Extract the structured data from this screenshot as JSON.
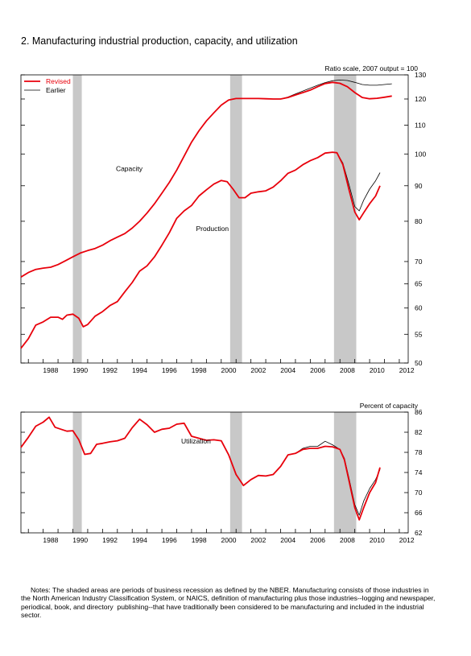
{
  "figure": {
    "title": "2. Manufacturing industrial production, capacity, and utilization",
    "notes": "     Notes: The shaded areas are periods of business recession as defined by the NBER. Manufacturing consists of those industries in the North American Industry Classification System, or NAICS, definition of manufacturing plus those industries--logging and newspaper, periodical, book, and directory  publishing--that have traditionally been considered to be manufacturing and included in the industrial sector."
  },
  "colors": {
    "revised": "#e8000b",
    "earlier": "#000000",
    "recession": "#c8c8c8"
  },
  "chart_data": [
    {
      "type": "line",
      "title": "",
      "axis_note": "Ratio scale, 2007 output = 100",
      "scale": "log",
      "xlim": [
        1986.5,
        2012.6
      ],
      "ylim": [
        50,
        130
      ],
      "x_tick_labels": [
        "1988",
        "1990",
        "1992",
        "1994",
        "1996",
        "1998",
        "2000",
        "2002",
        "2004",
        "2006",
        "2008",
        "2010",
        "2012"
      ],
      "y_tick_labels": [
        "50",
        "55",
        "60",
        "65",
        "70",
        "80",
        "90",
        "100",
        "110",
        "120",
        "130"
      ],
      "legend": {
        "position": "top-left",
        "entries": [
          "Revised",
          "Earlier"
        ]
      },
      "recessions": [
        [
          1990.0,
          1990.6
        ],
        [
          2000.6,
          2001.4
        ],
        [
          2007.6,
          2009.1
        ]
      ],
      "annotations": [
        {
          "text": "Capacity",
          "x": 1992.9,
          "y": 94.5
        },
        {
          "text": "Production",
          "x": 1998.3,
          "y": 77.5
        }
      ],
      "series": [
        {
          "name": "Revised",
          "label": "Capacity",
          "x": [
            1986.5,
            1987,
            1987.5,
            1988,
            1988.5,
            1989,
            1989.5,
            1990,
            1990.5,
            1991,
            1991.5,
            1992,
            1992.5,
            1993,
            1993.5,
            1994,
            1994.5,
            1995,
            1995.5,
            1996,
            1996.5,
            1997,
            1997.5,
            1998,
            1998.5,
            1999,
            1999.5,
            2000,
            2000.5,
            2001,
            2001.5,
            2002,
            2002.5,
            2003,
            2003.5,
            2004,
            2004.5,
            2005,
            2005.5,
            2006,
            2006.5,
            2007,
            2007.5,
            2008,
            2008.5,
            2009,
            2009.5,
            2010,
            2010.5,
            2011,
            2011.5
          ],
          "y": [
            66.5,
            67.5,
            68.2,
            68.5,
            68.7,
            69.3,
            70.2,
            71.1,
            72.0,
            72.6,
            73.1,
            73.9,
            75.0,
            75.9,
            76.8,
            78.2,
            80.0,
            82.2,
            84.8,
            87.8,
            91.0,
            94.8,
            99.3,
            104.0,
            108.0,
            111.6,
            114.6,
            117.6,
            119.6,
            120.2,
            120.2,
            120.2,
            120.2,
            120.1,
            120.0,
            120.0,
            120.6,
            121.6,
            122.6,
            123.6,
            125.0,
            126.3,
            126.8,
            126.4,
            125.0,
            122.6,
            120.6,
            120.1,
            120.3,
            120.7,
            121.2
          ]
        },
        {
          "name": "Earlier",
          "label": "Capacity",
          "x": [
            1986.5,
            1987,
            1987.5,
            1988,
            1988.5,
            1989,
            1989.5,
            1990,
            1990.5,
            1991,
            1991.5,
            1992,
            1992.5,
            1993,
            1993.5,
            1994,
            1994.5,
            1995,
            1995.5,
            1996,
            1996.5,
            1997,
            1997.5,
            1998,
            1998.5,
            1999,
            1999.5,
            2000,
            2000.5,
            2001,
            2001.5,
            2002,
            2002.5,
            2003,
            2003.5,
            2004,
            2004.5,
            2005,
            2005.5,
            2006,
            2006.5,
            2007,
            2007.5,
            2008,
            2008.5,
            2009,
            2009.5,
            2010,
            2010.5,
            2011,
            2011.5
          ],
          "y": [
            66.5,
            67.5,
            68.2,
            68.5,
            68.7,
            69.3,
            70.2,
            71.1,
            72.0,
            72.6,
            73.1,
            73.9,
            75.0,
            75.9,
            76.8,
            78.2,
            80.0,
            82.2,
            84.8,
            87.8,
            91.0,
            94.8,
            99.3,
            104.0,
            108.0,
            111.6,
            114.6,
            117.6,
            119.6,
            120.2,
            120.2,
            120.2,
            120.2,
            120.1,
            120.0,
            120.0,
            120.8,
            122.0,
            123.2,
            124.4,
            125.6,
            126.7,
            127.5,
            127.8,
            127.6,
            126.8,
            125.9,
            125.6,
            125.6,
            125.9,
            126.2
          ]
        },
        {
          "name": "Revised",
          "label": "Production",
          "x": [
            1986.5,
            1987,
            1987.5,
            1988,
            1988.5,
            1989,
            1989.3,
            1989.6,
            1990,
            1990.4,
            1990.7,
            1991,
            1991.5,
            1992,
            1992.5,
            1993,
            1993.5,
            1994,
            1994.5,
            1995,
            1995.5,
            1996,
            1996.5,
            1997,
            1997.5,
            1998,
            1998.5,
            1999,
            1999.5,
            2000,
            2000.4,
            2000.8,
            2001.2,
            2001.6,
            2002,
            2002.5,
            2003,
            2003.5,
            2004,
            2004.5,
            2005,
            2005.5,
            2006,
            2006.5,
            2007,
            2007.5,
            2007.8,
            2008.2,
            2008.6,
            2009,
            2009.3,
            2009.6,
            2010,
            2010.4,
            2010.7
          ],
          "y": [
            52.5,
            54.2,
            56.7,
            57.3,
            58.2,
            58.2,
            57.8,
            58.6,
            58.8,
            58.0,
            56.4,
            56.8,
            58.4,
            59.3,
            60.5,
            61.3,
            63.3,
            65.3,
            67.8,
            69.0,
            71.1,
            73.9,
            77.0,
            80.8,
            82.8,
            84.3,
            87.0,
            88.8,
            90.5,
            91.6,
            91.2,
            89.0,
            86.5,
            86.5,
            87.8,
            88.2,
            88.5,
            89.6,
            91.5,
            93.8,
            94.8,
            96.5,
            97.8,
            98.8,
            100.3,
            100.6,
            100.4,
            96.5,
            89.0,
            82.5,
            80.4,
            82.3,
            84.8,
            87.0,
            90.0
          ]
        },
        {
          "name": "Earlier",
          "label": "Production",
          "x": [
            1986.5,
            1987,
            1987.5,
            1988,
            1988.5,
            1989,
            1989.3,
            1989.6,
            1990,
            1990.4,
            1990.7,
            1991,
            1991.5,
            1992,
            1992.5,
            1993,
            1993.5,
            1994,
            1994.5,
            1995,
            1995.5,
            1996,
            1996.5,
            1997,
            1997.5,
            1998,
            1998.5,
            1999,
            1999.5,
            2000,
            2000.4,
            2000.8,
            2001.2,
            2001.6,
            2002,
            2002.5,
            2003,
            2003.5,
            2004,
            2004.5,
            2005,
            2005.5,
            2006,
            2006.5,
            2007,
            2007.5,
            2007.8,
            2008.2,
            2008.6,
            2009,
            2009.3,
            2009.6,
            2010,
            2010.4,
            2010.7
          ],
          "y": [
            52.5,
            54.2,
            56.7,
            57.3,
            58.2,
            58.2,
            57.8,
            58.6,
            58.8,
            58.0,
            56.4,
            56.8,
            58.4,
            59.3,
            60.5,
            61.3,
            63.3,
            65.3,
            67.8,
            69.0,
            71.1,
            73.9,
            77.0,
            80.8,
            82.8,
            84.3,
            87.0,
            88.8,
            90.5,
            91.6,
            91.2,
            89.0,
            86.5,
            86.5,
            87.8,
            88.2,
            88.5,
            89.6,
            91.5,
            93.8,
            94.8,
            96.5,
            97.8,
            98.8,
            100.3,
            100.6,
            100.4,
            97.0,
            90.5,
            84.0,
            82.8,
            85.8,
            89.0,
            91.5,
            94.0
          ]
        }
      ]
    },
    {
      "type": "line",
      "title": "",
      "axis_note": "Percent of capacity",
      "xlim": [
        1986.5,
        2012.6
      ],
      "ylim": [
        62,
        86
      ],
      "x_tick_labels": [
        "1988",
        "1990",
        "1992",
        "1994",
        "1996",
        "1998",
        "2000",
        "2002",
        "2004",
        "2006",
        "2008",
        "2010",
        "2012"
      ],
      "y_tick_labels": [
        "62",
        "66",
        "70",
        "74",
        "78",
        "82",
        "86"
      ],
      "recessions": [
        [
          1990.0,
          1990.6
        ],
        [
          2000.6,
          2001.4
        ],
        [
          2007.6,
          2009.1
        ]
      ],
      "annotations": [
        {
          "text": "Utilization",
          "x": 1997.3,
          "y": 79.8
        }
      ],
      "series": [
        {
          "name": "Revised",
          "label": "Utilization",
          "x": [
            1986.5,
            1987,
            1987.5,
            1988,
            1988.4,
            1988.8,
            1989.2,
            1989.6,
            1990,
            1990.4,
            1990.8,
            1991.2,
            1991.6,
            1992,
            1992.5,
            1993,
            1993.5,
            1994,
            1994.5,
            1995,
            1995.5,
            1996,
            1996.5,
            1997,
            1997.5,
            1998,
            1998.5,
            1999,
            1999.5,
            2000,
            2000.5,
            2001,
            2001.5,
            2002,
            2002.5,
            2003,
            2003.5,
            2004,
            2004.5,
            2005,
            2005.5,
            2006,
            2006.5,
            2007,
            2007.5,
            2008,
            2008.3,
            2008.6,
            2009,
            2009.3,
            2009.6,
            2010,
            2010.4,
            2010.7
          ],
          "y": [
            79.0,
            81.0,
            83.2,
            84.0,
            85.0,
            83.0,
            82.6,
            82.2,
            82.3,
            80.5,
            77.6,
            77.8,
            79.6,
            79.8,
            80.1,
            80.3,
            80.8,
            82.9,
            84.6,
            83.5,
            82.0,
            82.6,
            82.8,
            83.6,
            83.8,
            81.2,
            80.8,
            80.4,
            80.5,
            80.3,
            77.5,
            73.6,
            71.4,
            72.6,
            73.4,
            73.3,
            73.6,
            75.2,
            77.5,
            77.8,
            78.6,
            78.8,
            78.8,
            79.2,
            79.1,
            78.6,
            76.5,
            72.5,
            67.0,
            64.6,
            67.0,
            70.0,
            72.0,
            75.0
          ]
        },
        {
          "name": "Earlier",
          "label": "Utilization",
          "x": [
            1986.5,
            1987,
            1987.5,
            1988,
            1988.4,
            1988.8,
            1989.2,
            1989.6,
            1990,
            1990.4,
            1990.8,
            1991.2,
            1991.6,
            1992,
            1992.5,
            1993,
            1993.5,
            1994,
            1994.5,
            1995,
            1995.5,
            1996,
            1996.5,
            1997,
            1997.5,
            1998,
            1998.5,
            1999,
            1999.5,
            2000,
            2000.5,
            2001,
            2001.5,
            2002,
            2002.5,
            2003,
            2003.5,
            2004,
            2004.5,
            2005,
            2005.5,
            2006,
            2006.5,
            2007,
            2007.5,
            2008,
            2008.3,
            2008.6,
            2009,
            2009.3,
            2009.6,
            2010,
            2010.4,
            2010.7
          ],
          "y": [
            79.0,
            81.0,
            83.2,
            84.0,
            85.0,
            83.0,
            82.6,
            82.2,
            82.3,
            80.5,
            77.6,
            77.8,
            79.6,
            79.8,
            80.1,
            80.3,
            80.8,
            82.9,
            84.6,
            83.5,
            82.0,
            82.6,
            82.8,
            83.6,
            83.8,
            81.2,
            80.8,
            80.4,
            80.5,
            80.3,
            77.5,
            73.6,
            71.4,
            72.6,
            73.4,
            73.3,
            73.6,
            75.2,
            77.5,
            77.8,
            78.8,
            79.2,
            79.2,
            80.2,
            79.5,
            78.6,
            76.8,
            73.0,
            67.6,
            65.5,
            68.3,
            70.8,
            72.6,
            74.6
          ]
        }
      ]
    }
  ]
}
